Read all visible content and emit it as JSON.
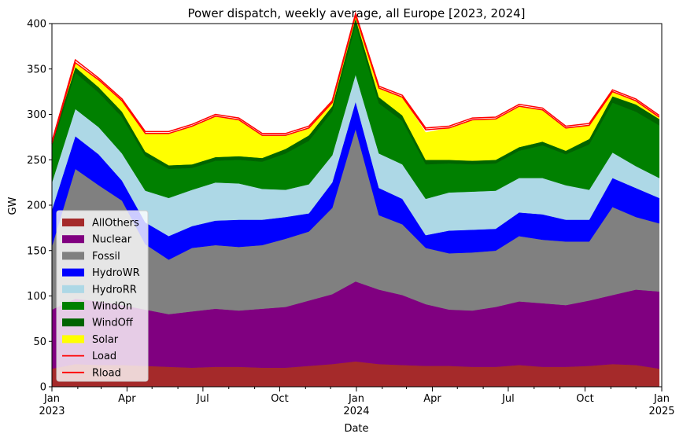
{
  "chart_data": {
    "type": "area",
    "stacked": true,
    "title": "Power dispatch, weekly average, all Europe [2023, 2024]",
    "xlabel": "Date",
    "ylabel": "GW",
    "xlim": [
      "2023-01-01",
      "2025-01-01"
    ],
    "ylim": [
      0,
      400
    ],
    "yticks": [
      0,
      50,
      100,
      150,
      200,
      250,
      300,
      350,
      400
    ],
    "xticks": [
      {
        "date": "2023-01-01",
        "label": "Jan",
        "sublabel": "2023"
      },
      {
        "date": "2023-04-01",
        "label": "Apr",
        "sublabel": ""
      },
      {
        "date": "2023-07-01",
        "label": "Jul",
        "sublabel": ""
      },
      {
        "date": "2023-10-01",
        "label": "Oct",
        "sublabel": ""
      },
      {
        "date": "2024-01-01",
        "label": "Jan",
        "sublabel": "2024"
      },
      {
        "date": "2024-04-01",
        "label": "Apr",
        "sublabel": ""
      },
      {
        "date": "2024-07-01",
        "label": "Jul",
        "sublabel": ""
      },
      {
        "date": "2024-10-01",
        "label": "Oct",
        "sublabel": ""
      },
      {
        "date": "2025-01-01",
        "label": "Jan",
        "sublabel": "2025"
      }
    ],
    "grid": false,
    "legend_position": "lower-left",
    "x": [
      "2023-01-01",
      "2023-01-29",
      "2023-02-26",
      "2023-03-26",
      "2023-04-23",
      "2023-05-21",
      "2023-06-18",
      "2023-07-16",
      "2023-08-13",
      "2023-09-10",
      "2023-10-08",
      "2023-11-05",
      "2023-12-03",
      "2023-12-31",
      "2024-01-28",
      "2024-02-25",
      "2024-03-24",
      "2024-04-21",
      "2024-05-19",
      "2024-06-16",
      "2024-07-14",
      "2024-08-11",
      "2024-09-08",
      "2024-10-06",
      "2024-11-03",
      "2024-12-01",
      "2024-12-29"
    ],
    "series": [
      {
        "name": "AllOthers",
        "color": "#a52a2a",
        "kind": "area",
        "values": [
          20,
          25,
          24,
          24,
          23,
          22,
          21,
          22,
          22,
          21,
          21,
          23,
          25,
          28,
          25,
          24,
          23,
          23,
          22,
          22,
          24,
          22,
          22,
          23,
          25,
          24,
          20
        ]
      },
      {
        "name": "Nuclear",
        "color": "#800080",
        "kind": "area",
        "values": [
          65,
          72,
          70,
          66,
          62,
          58,
          62,
          64,
          62,
          65,
          67,
          72,
          77,
          88,
          82,
          77,
          68,
          62,
          62,
          66,
          70,
          70,
          68,
          72,
          76,
          83,
          85
        ]
      },
      {
        "name": "Fossil",
        "color": "#808080",
        "kind": "area",
        "values": [
          70,
          143,
          128,
          115,
          72,
          60,
          70,
          70,
          70,
          70,
          75,
          76,
          95,
          168,
          82,
          78,
          62,
          62,
          64,
          62,
          72,
          70,
          70,
          65,
          97,
          80,
          75
        ]
      },
      {
        "name": "HydroWR",
        "color": "#0000ff",
        "kind": "area",
        "values": [
          40,
          36,
          34,
          22,
          24,
          26,
          24,
          27,
          30,
          28,
          24,
          20,
          28,
          30,
          30,
          28,
          14,
          25,
          25,
          24,
          26,
          28,
          24,
          24,
          32,
          32,
          28
        ]
      },
      {
        "name": "HydroRR",
        "color": "#add8e6",
        "kind": "area",
        "values": [
          30,
          30,
          30,
          30,
          35,
          42,
          40,
          42,
          40,
          34,
          30,
          32,
          30,
          30,
          38,
          38,
          40,
          42,
          42,
          42,
          38,
          40,
          38,
          33,
          28,
          24,
          22
        ]
      },
      {
        "name": "WindOn",
        "color": "#008000",
        "kind": "area",
        "values": [
          40,
          40,
          38,
          40,
          38,
          32,
          24,
          24,
          26,
          30,
          40,
          48,
          48,
          55,
          55,
          48,
          38,
          32,
          30,
          30,
          30,
          36,
          34,
          50,
          55,
          60,
          58
        ]
      },
      {
        "name": "WindOff",
        "color": "#006400",
        "kind": "area",
        "values": [
          5,
          6,
          6,
          6,
          5,
          4,
          4,
          4,
          4,
          4,
          5,
          6,
          6,
          7,
          7,
          6,
          5,
          4,
          4,
          4,
          4,
          4,
          4,
          6,
          7,
          8,
          7
        ]
      },
      {
        "name": "Solar",
        "color": "#ffff00",
        "kind": "area",
        "values": [
          0,
          5,
          8,
          12,
          20,
          35,
          42,
          45,
          40,
          25,
          15,
          8,
          5,
          3,
          10,
          20,
          30,
          35,
          45,
          45,
          45,
          35,
          25,
          15,
          5,
          4,
          2
        ]
      },
      {
        "name": "Load",
        "color": "#ff0000",
        "kind": "line",
        "values": [
          268,
          357,
          338,
          315,
          279,
          279,
          287,
          298,
          294,
          277,
          277,
          285,
          313,
          409,
          329,
          319,
          283,
          285,
          294,
          295,
          309,
          305,
          285,
          288,
          325,
          315,
          297
        ]
      },
      {
        "name": "Rload",
        "color": "#ff0000",
        "kind": "line",
        "values": [
          270,
          360,
          340,
          317,
          281,
          281,
          289,
          300,
          296,
          279,
          279,
          287,
          315,
          411,
          331,
          321,
          285,
          287,
          296,
          297,
          311,
          307,
          287,
          290,
          327,
          317,
          299
        ]
      }
    ]
  }
}
